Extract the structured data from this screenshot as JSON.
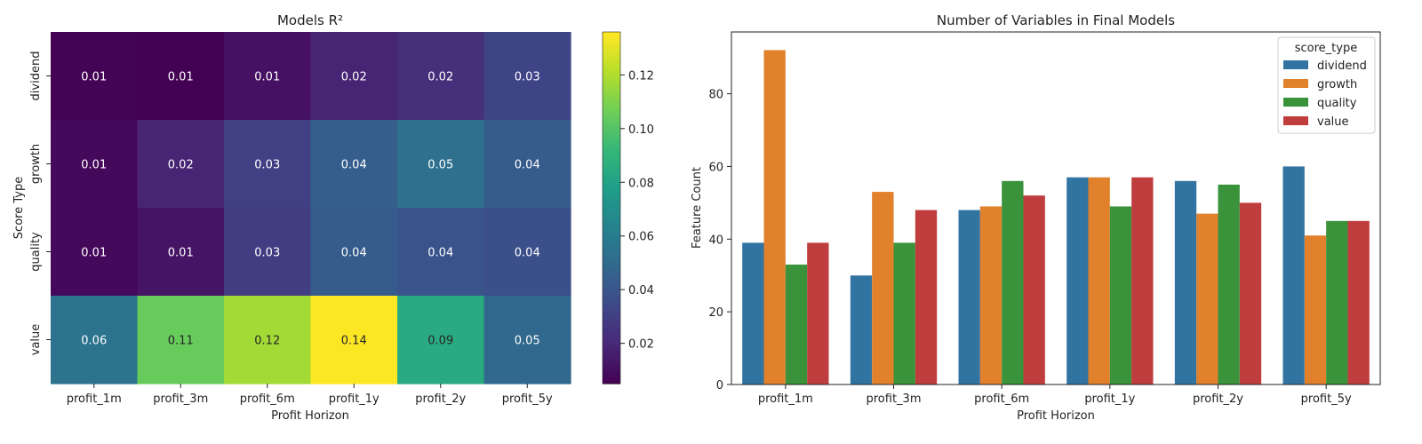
{
  "chart_data": [
    {
      "type": "heatmap",
      "title": "Models R²",
      "xlabel": "Profit Horizon",
      "ylabel": "Score Type",
      "x_categories": [
        "profit_1m",
        "profit_3m",
        "profit_6m",
        "profit_1y",
        "profit_2y",
        "profit_5y"
      ],
      "y_categories": [
        "dividend",
        "growth",
        "quality",
        "value"
      ],
      "values": [
        [
          0.006,
          0.005,
          0.011,
          0.018,
          0.023,
          0.032
        ],
        [
          0.008,
          0.018,
          0.03,
          0.044,
          0.053,
          0.043
        ],
        [
          0.008,
          0.012,
          0.029,
          0.043,
          0.039,
          0.037
        ],
        [
          0.055,
          0.105,
          0.118,
          0.136,
          0.085,
          0.049
        ]
      ],
      "value_labels": [
        [
          "0.01",
          "0.01",
          "0.01",
          "0.02",
          "0.02",
          "0.03"
        ],
        [
          "0.01",
          "0.02",
          "0.03",
          "0.04",
          "0.05",
          "0.04"
        ],
        [
          "0.01",
          "0.01",
          "0.03",
          "0.04",
          "0.04",
          "0.04"
        ],
        [
          "0.06",
          "0.11",
          "0.12",
          "0.14",
          "0.09",
          "0.05"
        ]
      ],
      "colormap": "viridis",
      "vmin": 0.005,
      "vmax": 0.136,
      "colorbar_ticks": [
        "0.02",
        "0.04",
        "0.06",
        "0.08",
        "0.10",
        "0.12"
      ]
    },
    {
      "type": "bar",
      "title": "Number of Variables in Final Models",
      "xlabel": "Profit Horizon",
      "ylabel": "Feature Count",
      "categories": [
        "profit_1m",
        "profit_3m",
        "profit_6m",
        "profit_1y",
        "profit_2y",
        "profit_5y"
      ],
      "ylim": [
        0,
        97
      ],
      "yticks": [
        0,
        20,
        40,
        60,
        80
      ],
      "legend_title": "score_type",
      "legend_position": "top-right",
      "series": [
        {
          "name": "dividend",
          "color": "#3274a1",
          "values": [
            39,
            30,
            48,
            57,
            56,
            60
          ]
        },
        {
          "name": "growth",
          "color": "#e1812c",
          "values": [
            92,
            53,
            49,
            57,
            47,
            41
          ]
        },
        {
          "name": "quality",
          "color": "#3a923a",
          "values": [
            33,
            39,
            56,
            49,
            55,
            45
          ]
        },
        {
          "name": "value",
          "color": "#c03d3e",
          "values": [
            39,
            48,
            52,
            57,
            50,
            45
          ]
        }
      ]
    }
  ]
}
